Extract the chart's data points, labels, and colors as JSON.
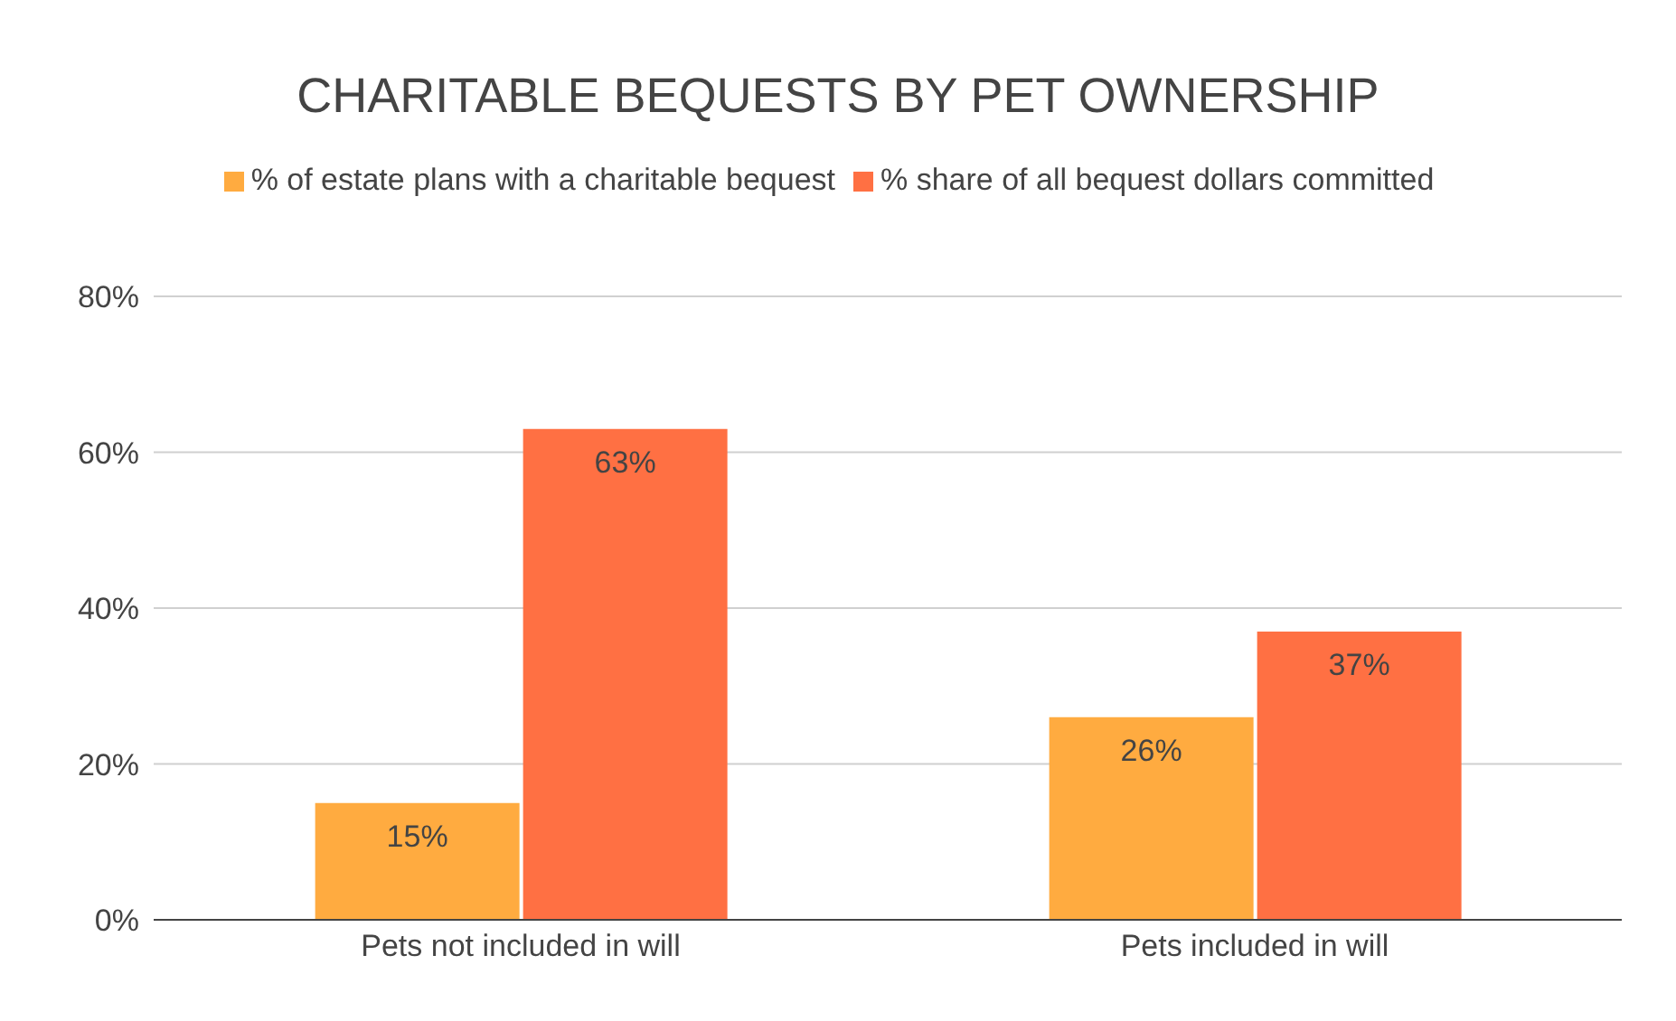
{
  "chart_data": {
    "type": "bar",
    "title": "CHARITABLE BEQUESTS BY PET OWNERSHIP",
    "categories": [
      "Pets not included in will",
      "Pets included in will"
    ],
    "series": [
      {
        "name": "% of estate plans with a charitable bequest",
        "color": "#ffab40",
        "values": [
          15,
          26
        ],
        "value_labels": [
          "15%",
          "26%"
        ]
      },
      {
        "name": "% share of all bequest dollars committed",
        "color": "#ff7043",
        "values": [
          63,
          37
        ],
        "value_labels": [
          "63%",
          "37%"
        ]
      }
    ],
    "ylim": [
      0,
      80
    ],
    "yticks": [
      {
        "value": 0,
        "label": "0%"
      },
      {
        "value": 20,
        "label": "20%"
      },
      {
        "value": 40,
        "label": "40%"
      },
      {
        "value": 60,
        "label": "60%"
      },
      {
        "value": 80,
        "label": "80%"
      }
    ],
    "grid": "y",
    "legend": "top"
  }
}
